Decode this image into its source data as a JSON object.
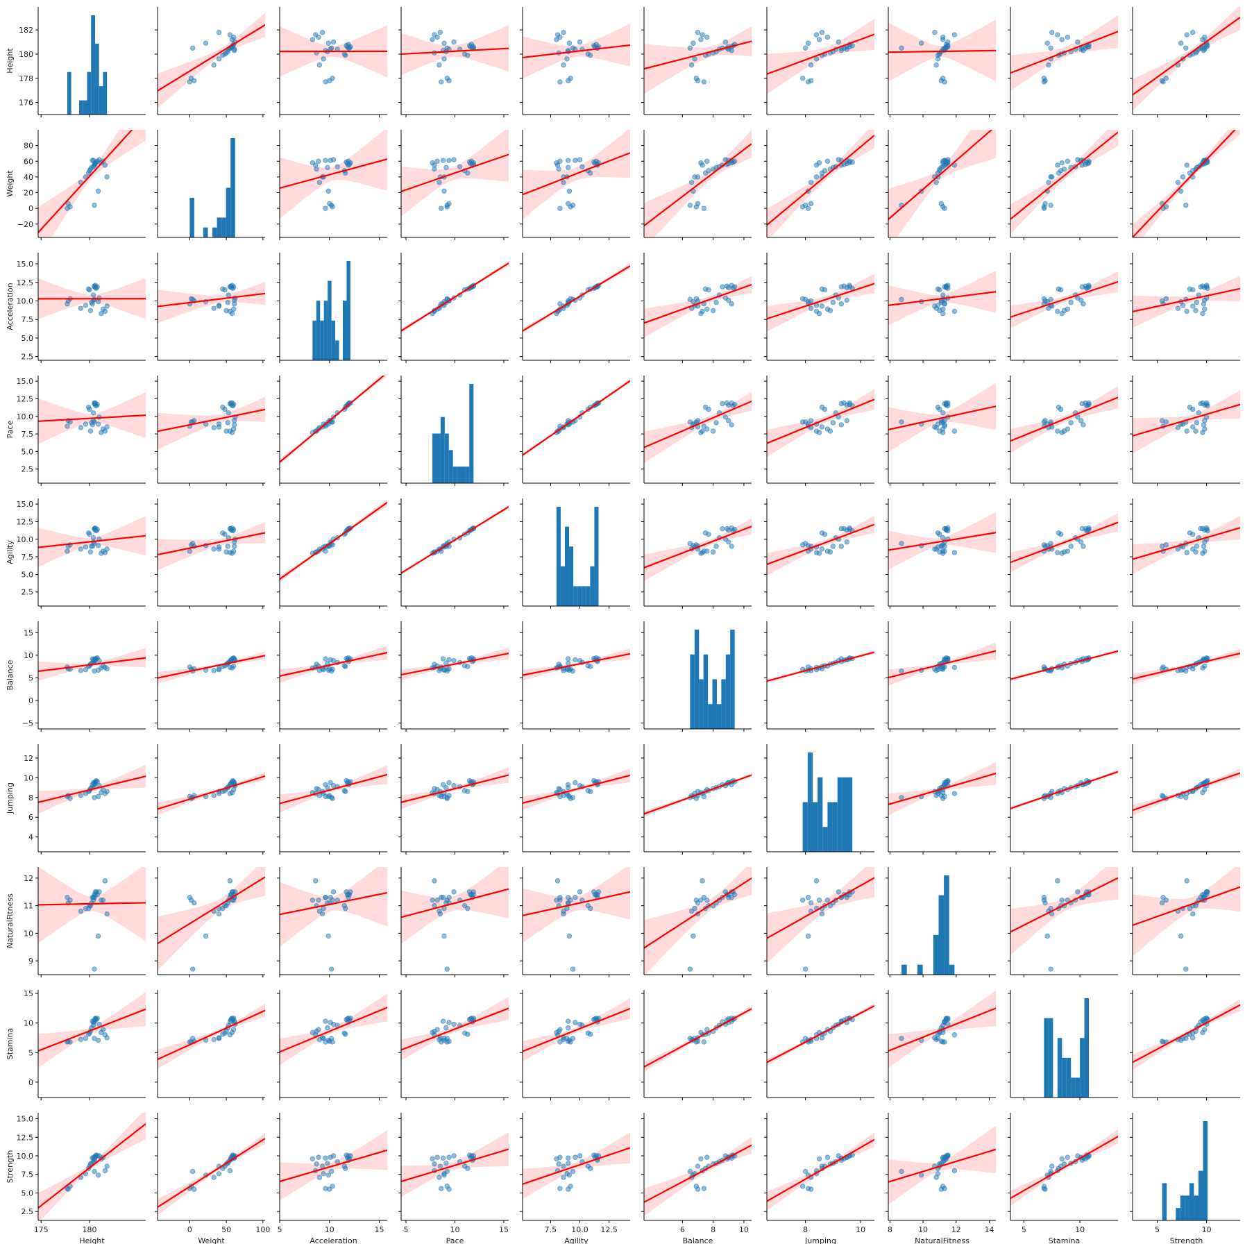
{
  "chart_data": {
    "type": "scatter",
    "layout": "pairplot",
    "variables": [
      "Height",
      "Weight",
      "Acceleration",
      "Pace",
      "Agility",
      "Balance",
      "Jumping",
      "NaturalFitness",
      "Stamina",
      "Strength"
    ],
    "xlim": {
      "Height": [
        174.7,
        185.8
      ],
      "Weight": [
        -44,
        103
      ],
      "Acceleration": [
        5,
        15.8
      ],
      "Pace": [
        4.5,
        15.5
      ],
      "Agility": [
        5.1,
        14.3
      ],
      "Balance": [
        3.5,
        10.5
      ],
      "Jumping": [
        6.6,
        10.5
      ],
      "NaturalFitness": [
        7.9,
        14.4
      ],
      "Stamina": [
        3.8,
        13.4
      ],
      "Strength": [
        2.5,
        13.4
      ]
    },
    "ylim": {
      "Height": [
        175,
        183.9
      ],
      "Weight": [
        -37,
        100
      ],
      "Acceleration": [
        2,
        16.5
      ],
      "Pace": [
        0.5,
        15.8
      ],
      "Agility": [
        0.5,
        15.8
      ],
      "Balance": [
        -6.3,
        17.5
      ],
      "Jumping": [
        2.5,
        13.4
      ],
      "NaturalFitness": [
        8.5,
        12.4
      ],
      "Stamina": [
        -2.6,
        15.6
      ],
      "Strength": [
        1.3,
        15.8
      ]
    },
    "ticks": {
      "Height": [
        176,
        178,
        180,
        182
      ],
      "Weight": [
        -20,
        0,
        20,
        40,
        60,
        80
      ],
      "Acceleration": [
        2.5,
        5.0,
        7.5,
        10.0,
        12.5,
        15.0
      ],
      "Pace": [
        2.5,
        5.0,
        7.5,
        10.0,
        12.5,
        15.0
      ],
      "Agility": [
        2.5,
        5.0,
        7.5,
        10.0,
        12.5,
        15.0
      ],
      "Balance": [
        -5,
        0,
        5,
        10,
        15
      ],
      "Jumping": [
        4,
        6,
        8,
        10,
        12
      ],
      "NaturalFitness": [
        9,
        10,
        11,
        12
      ],
      "Stamina": [
        0,
        5,
        10,
        15
      ],
      "Strength": [
        2.5,
        5.0,
        7.5,
        10.0,
        12.5,
        15.0
      ]
    },
    "xticks": {
      "Height": [
        175,
        180
      ],
      "Weight": [
        0,
        50,
        100
      ],
      "Acceleration": [
        5,
        10,
        15
      ],
      "Pace": [
        5,
        10,
        15
      ],
      "Agility": [
        7.5,
        10.0,
        12.5
      ],
      "Balance": [
        6,
        8,
        10
      ],
      "Jumping": [
        8,
        10
      ],
      "NaturalFitness": [
        8,
        10,
        12,
        14
      ],
      "Stamina": [
        5,
        10
      ],
      "Strength": [
        5,
        10
      ]
    },
    "tick_labels": {
      "Height": [
        "176",
        "178",
        "180",
        "182"
      ],
      "Weight": [
        "−20",
        "0",
        "20",
        "40",
        "60",
        "80"
      ],
      "Acceleration": [
        "2.5",
        "5.0",
        "7.5",
        "10.0",
        "12.5",
        "15.0"
      ],
      "Pace": [
        "2.5",
        "5.0",
        "7.5",
        "10.0",
        "12.5",
        "15.0"
      ],
      "Agility": [
        "2.5",
        "5.0",
        "7.5",
        "10.0",
        "12.5",
        "15.0"
      ],
      "Balance": [
        "−5",
        "0",
        "5",
        "10",
        "15"
      ],
      "Jumping": [
        "4",
        "6",
        "8",
        "10",
        "12"
      ],
      "NaturalFitness": [
        "9",
        "10",
        "11",
        "12"
      ],
      "Stamina": [
        "0",
        "5",
        "10",
        "15"
      ],
      "Strength": [
        "2.5",
        "5.0",
        "7.5",
        "10.0",
        "12.5",
        "15.0"
      ]
    },
    "xtick_labels": {
      "Height": [
        "175",
        "180"
      ],
      "Weight": [
        "0",
        "50",
        "100"
      ],
      "Acceleration": [
        "5",
        "10",
        "15"
      ],
      "Pace": [
        "5",
        "10",
        "15"
      ],
      "Agility": [
        "7.5",
        "10.0",
        "12.5"
      ],
      "Balance": [
        "6",
        "8",
        "10"
      ],
      "Jumping": [
        "8",
        "10"
      ],
      "NaturalFitness": [
        "8",
        "10",
        "12",
        "14"
      ],
      "Stamina": [
        "5",
        "10"
      ],
      "Strength": [
        "5",
        "10"
      ]
    },
    "records": [
      {
        "Height": 177.7,
        "Weight": 0.0,
        "Acceleration": 9.6,
        "Pace": 8.6,
        "Agility": 8.3,
        "Balance": 7.4,
        "Jumping": 8.1,
        "NaturalFitness": 11.3,
        "Stamina": 6.8,
        "Strength": 5.6
      },
      {
        "Height": 177.8,
        "Weight": 6.0,
        "Acceleration": 10.0,
        "Pace": 9.4,
        "Agility": 9.0,
        "Balance": 7.0,
        "Jumping": 8.2,
        "NaturalFitness": 11.1,
        "Stamina": 6.9,
        "Strength": 5.5
      },
      {
        "Height": 178.0,
        "Weight": 2.0,
        "Acceleration": 10.3,
        "Pace": 9.2,
        "Agility": 9.2,
        "Balance": 6.9,
        "Jumping": 7.9,
        "NaturalFitness": 11.2,
        "Stamina": 6.8,
        "Strength": 5.9
      },
      {
        "Height": 179.1,
        "Weight": 33.0,
        "Acceleration": 9.0,
        "Pace": 8.4,
        "Agility": 8.6,
        "Balance": 6.6,
        "Jumping": 8.2,
        "NaturalFitness": 10.8,
        "Stamina": 7.2,
        "Strength": 7.1
      },
      {
        "Height": 179.6,
        "Weight": 40.0,
        "Acceleration": 9.4,
        "Pace": 8.9,
        "Agility": 8.9,
        "Balance": 6.8,
        "Jumping": 8.4,
        "NaturalFitness": 10.9,
        "Stamina": 7.4,
        "Strength": 7.6
      },
      {
        "Height": 179.9,
        "Weight": 45.0,
        "Acceleration": 11.6,
        "Pace": 11.3,
        "Agility": 10.9,
        "Balance": 7.5,
        "Jumping": 8.6,
        "NaturalFitness": 10.9,
        "Stamina": 8.1,
        "Strength": 8.3
      },
      {
        "Height": 180.0,
        "Weight": 48.0,
        "Acceleration": 11.5,
        "Pace": 11.0,
        "Agility": 10.7,
        "Balance": 7.7,
        "Jumping": 8.7,
        "NaturalFitness": 11.0,
        "Stamina": 8.3,
        "Strength": 8.6
      },
      {
        "Height": 180.1,
        "Weight": 50.0,
        "Acceleration": 8.7,
        "Pace": 7.9,
        "Agility": 8.2,
        "Balance": 8.0,
        "Jumping": 8.9,
        "NaturalFitness": 11.0,
        "Stamina": 8.6,
        "Strength": 8.9
      },
      {
        "Height": 180.2,
        "Weight": 52.0,
        "Acceleration": 9.8,
        "Pace": 9.1,
        "Agility": 9.0,
        "Balance": 8.2,
        "Jumping": 9.0,
        "NaturalFitness": 11.1,
        "Stamina": 9.2,
        "Strength": 9.0
      },
      {
        "Height": 180.4,
        "Weight": 53.0,
        "Acceleration": 10.8,
        "Pace": 10.5,
        "Agility": 10.2,
        "Balance": 8.4,
        "Jumping": 9.1,
        "NaturalFitness": 11.2,
        "Stamina": 9.6,
        "Strength": 9.2
      },
      {
        "Height": 180.5,
        "Weight": 55.0,
        "Acceleration": 11.9,
        "Pace": 11.8,
        "Agility": 11.5,
        "Balance": 8.6,
        "Jumping": 9.3,
        "NaturalFitness": 11.3,
        "Stamina": 10.2,
        "Strength": 9.4
      },
      {
        "Height": 180.5,
        "Weight": 56.0,
        "Acceleration": 12.0,
        "Pace": 11.9,
        "Agility": 11.5,
        "Balance": 8.9,
        "Jumping": 9.4,
        "NaturalFitness": 11.4,
        "Stamina": 10.5,
        "Strength": 9.6
      },
      {
        "Height": 180.6,
        "Weight": 57.0,
        "Acceleration": 11.8,
        "Pace": 11.6,
        "Agility": 11.3,
        "Balance": 9.0,
        "Jumping": 9.5,
        "NaturalFitness": 11.4,
        "Stamina": 10.7,
        "Strength": 9.8
      },
      {
        "Height": 180.6,
        "Weight": 58.0,
        "Acceleration": 12.1,
        "Pace": 11.9,
        "Agility": 11.6,
        "Balance": 9.2,
        "Jumping": 9.6,
        "NaturalFitness": 11.5,
        "Stamina": 10.8,
        "Strength": 10.0
      },
      {
        "Height": 180.7,
        "Weight": 59.0,
        "Acceleration": 11.7,
        "Pace": 11.5,
        "Agility": 11.2,
        "Balance": 9.3,
        "Jumping": 9.7,
        "NaturalFitness": 11.5,
        "Stamina": 10.6,
        "Strength": 10.1
      },
      {
        "Height": 180.8,
        "Weight": 60.0,
        "Acceleration": 11.9,
        "Pace": 11.7,
        "Agility": 11.4,
        "Balance": 9.4,
        "Jumping": 9.6,
        "NaturalFitness": 11.4,
        "Stamina": 10.8,
        "Strength": 10.0
      },
      {
        "Height": 180.3,
        "Weight": 61.0,
        "Acceleration": 9.6,
        "Pace": 8.8,
        "Agility": 9.0,
        "Balance": 9.2,
        "Jumping": 9.3,
        "NaturalFitness": 11.3,
        "Stamina": 10.3,
        "Strength": 9.7
      },
      {
        "Height": 180.4,
        "Weight": 61.0,
        "Acceleration": 10.1,
        "Pace": 9.4,
        "Agility": 9.6,
        "Balance": 9.0,
        "Jumping": 9.5,
        "NaturalFitness": 11.3,
        "Stamina": 10.1,
        "Strength": 9.8
      },
      {
        "Height": 181.0,
        "Weight": 62.0,
        "Acceleration": 10.4,
        "Pace": 9.9,
        "Agility": 10.0,
        "Balance": 8.8,
        "Jumping": 9.2,
        "NaturalFitness": 11.5,
        "Stamina": 9.8,
        "Strength": 10.0
      },
      {
        "Height": 181.2,
        "Weight": 58.0,
        "Acceleration": 8.3,
        "Pace": 7.7,
        "Agility": 8.0,
        "Balance": 7.2,
        "Jumping": 8.5,
        "NaturalFitness": 11.2,
        "Stamina": 8.4,
        "Strength": 9.6
      },
      {
        "Height": 181.4,
        "Weight": 60.0,
        "Acceleration": 8.9,
        "Pace": 8.2,
        "Agility": 8.3,
        "Balance": 7.6,
        "Jumping": 8.8,
        "NaturalFitness": 11.2,
        "Stamina": 8.9,
        "Strength": 9.8
      },
      {
        "Height": 181.6,
        "Weight": 55.0,
        "Acceleration": 8.6,
        "Pace": 7.9,
        "Agility": 8.1,
        "Balance": 7.3,
        "Jumping": 8.4,
        "NaturalFitness": 11.9,
        "Stamina": 8.0,
        "Strength": 8.0
      },
      {
        "Height": 181.8,
        "Weight": 40.0,
        "Acceleration": 9.3,
        "Pace": 8.5,
        "Agility": 8.6,
        "Balance": 7.0,
        "Jumping": 8.6,
        "NaturalFitness": 10.7,
        "Stamina": 7.5,
        "Strength": 8.6
      },
      {
        "Height": 180.9,
        "Weight": 22.0,
        "Acceleration": 9.9,
        "Pace": 8.9,
        "Agility": 9.1,
        "Balance": 6.7,
        "Jumping": 8.1,
        "NaturalFitness": 9.9,
        "Stamina": 7.1,
        "Strength": 7.4
      },
      {
        "Height": 180.5,
        "Weight": 4.0,
        "Acceleration": 10.2,
        "Pace": 9.2,
        "Agility": 9.4,
        "Balance": 6.5,
        "Jumping": 8.0,
        "NaturalFitness": 8.7,
        "Stamina": 7.4,
        "Strength": 7.9
      }
    ]
  }
}
